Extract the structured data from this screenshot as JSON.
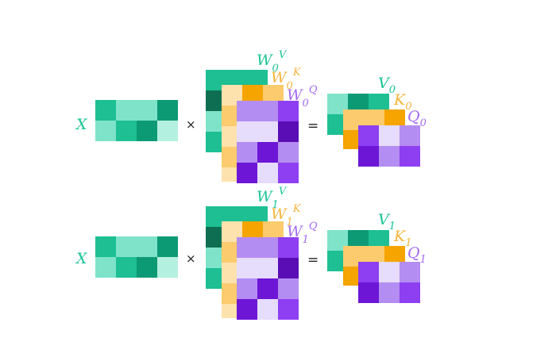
{
  "colors": {
    "teal_light": "#7fe3c9",
    "teal_mid": "#1dbf93",
    "teal_dark": "#0c9a75",
    "teal_darkest": "#0e6e52",
    "teal_text": "#19c495",
    "orange_light": "#fde2ae",
    "orange_mid": "#fbcb6d",
    "orange_dark": "#f5a400",
    "orange_text": "#f4b53c",
    "purple_pale": "#e6dcfb",
    "purple_light": "#b48df2",
    "purple_mid": "#8e3ff2",
    "purple_dark": "#6d16d6",
    "purple_darkest": "#5a0db5",
    "purple_text": "#a26af0",
    "operator": "#222222"
  },
  "operators": {
    "times": "×",
    "equals": "="
  },
  "rows": [
    {
      "x_label": "X",
      "w_v": {
        "base": "W",
        "sub": "0",
        "sup": "V"
      },
      "w_k": {
        "base": "W",
        "sub": "0",
        "sup": "K"
      },
      "w_q": {
        "base": "W",
        "sub": "0",
        "sup": "Q"
      },
      "v_out": {
        "base": "V",
        "sub": "0"
      },
      "k_out": {
        "base": "K",
        "sub": "0"
      },
      "q_out": {
        "base": "Q",
        "sub": "0"
      }
    },
    {
      "x_label": "X",
      "w_v": {
        "base": "W",
        "sub": "1",
        "sup": "V"
      },
      "w_k": {
        "base": "W",
        "sub": "1",
        "sup": "K"
      },
      "w_q": {
        "base": "W",
        "sub": "1",
        "sup": "Q"
      },
      "v_out": {
        "base": "V",
        "sub": "1"
      },
      "k_out": {
        "base": "K",
        "sub": "1"
      },
      "q_out": {
        "base": "Q",
        "sub": "1"
      }
    }
  ]
}
